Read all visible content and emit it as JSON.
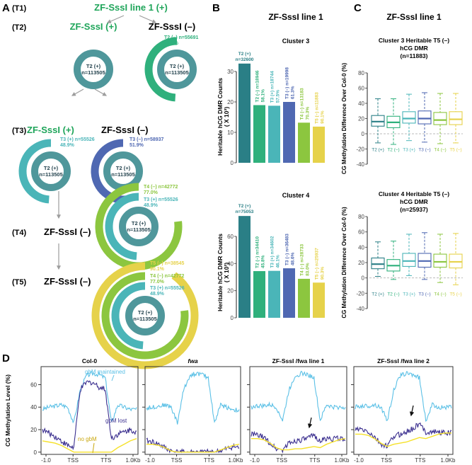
{
  "panels": {
    "A": {
      "letter": "A",
      "generation_labels": [
        "(T1)",
        "(T2)",
        "(T3)",
        "(T4)",
        "(T5)"
      ],
      "t1_title": "ZF-SssI line 1  (+)",
      "t2_plus": "ZF-SssI (+)",
      "t2_minus": "ZF-SssI (–)",
      "t3_plus": "ZF-SssI (+)",
      "t3_minus": "ZF-SssI (–)",
      "t4_minus": "ZF-SssI (–)",
      "t5_minus": "ZF-SssI (–)",
      "center_label_1": "T2 (+)",
      "center_label_2": "n=113505",
      "rings": {
        "t2_minus": {
          "label": "T2 (–) n=55691",
          "pct": "49.1%",
          "fraction": 0.491
        },
        "t3_plus": {
          "label": "T3 (+) n=55526",
          "pct": "48.9%",
          "fraction": 0.489
        },
        "t3_minus": {
          "label": "T3 (–) n=58937",
          "pct": "51.9%",
          "fraction": 0.519
        },
        "t4_minus": {
          "label": "T4 (–) n=42772",
          "pct": "77.0%",
          "fraction": 0.77
        },
        "t5_minus": {
          "label": "T5 (–) n=38545",
          "pct": "90.1%",
          "fraction": 0.901
        }
      }
    },
    "B": {
      "letter": "B",
      "title": "ZF-SssI line 1"
    },
    "C": {
      "letter": "C",
      "title": "ZF-SssI line 1"
    },
    "D": {
      "letter": "D"
    }
  },
  "colors": {
    "t2_plus": "#2a7f86",
    "t2_minus": "#2fb07c",
    "t3_plus": "#4ab5b8",
    "t3_minus": "#4f68b2",
    "t4_minus": "#8cc63f",
    "t5_minus": "#e6d24a",
    "ring_center": "#4f979b",
    "green_title": "#1fa55a",
    "gbm_maintained": "#5bc0e6",
    "gbm_lost": "#3b2f8f",
    "no_gbm": "#f5e12a"
  },
  "chart_data": [
    {
      "type": "bar",
      "title": "Cluster 3",
      "ylabel": "Heritable hCG DMR Counts ( X 10³)",
      "ylim": [
        0,
        30
      ],
      "yticks": [
        0,
        10,
        20,
        30
      ],
      "categories": [
        "T2 (+)",
        "T2 (–)",
        "T3 (+)",
        "T3 (–)",
        "T4 (–)",
        "T5 (–)"
      ],
      "values": [
        32.6,
        18.946,
        18.744,
        19.998,
        13.183,
        11.883
      ],
      "bar_labels": [
        [
          "T2 (+)",
          "n=32600"
        ],
        [
          "T2 (–) n=18946",
          "58.1%"
        ],
        [
          "T3 (+) n=18744",
          "57.5%"
        ],
        [
          "T3 (–) n=19998",
          "61.3%"
        ],
        [
          "T4 (–) n=13183",
          "70.3%"
        ],
        [
          "T5 (–) n=11883",
          "90.1%"
        ]
      ]
    },
    {
      "type": "bar",
      "title": "Cluster 4",
      "ylabel": "Heritable hCG DMR Counts ( X 10³)",
      "ylim": [
        0,
        60
      ],
      "yticks": [
        0,
        20,
        40,
        60
      ],
      "categories": [
        "T2 (+)",
        "T2 (–)",
        "T3 (+)",
        "T3 (–)",
        "T4 (–)",
        "T5 (–)"
      ],
      "values": [
        75.053,
        34.41,
        34.602,
        36.483,
        28.733,
        25.937
      ],
      "bar_labels": [
        [
          "T2 (+)",
          "n=75053"
        ],
        [
          "T2 (–) n=34410",
          "45.8%"
        ],
        [
          "T3 (+) n=34602",
          "46.1%"
        ],
        [
          "T3 (–) n=36483",
          "48.6%"
        ],
        [
          "T4 (–) n=28733",
          "83.0%"
        ],
        [
          "T5 (–) n=25937",
          "90.3%"
        ]
      ]
    },
    {
      "type": "box",
      "title": [
        "Cluster 3 Heritable T5 (–)",
        "hCG DMR",
        "(n=11883)"
      ],
      "ylabel": "CG Methylation Difference Over Col-0 (%)",
      "ylim": [
        -40,
        80
      ],
      "yticks": [
        -40,
        -20,
        0,
        20,
        40,
        60,
        80
      ],
      "categories": [
        "T2 (+)",
        "T2 (–)",
        "T3 (+)",
        "T3 (–)",
        "T4 (–)",
        "T5 (–)"
      ],
      "boxes": [
        {
          "whisker_low": -12,
          "q1": 10,
          "median": 16,
          "q3": 24,
          "whisker_high": 46
        },
        {
          "whisker_low": -14,
          "q1": 8,
          "median": 15,
          "q3": 23,
          "whisker_high": 46
        },
        {
          "whisker_low": -9,
          "q1": 14,
          "median": 20,
          "q3": 29,
          "whisker_high": 52
        },
        {
          "whisker_low": -11,
          "q1": 13,
          "median": 20,
          "q3": 30,
          "whisker_high": 54
        },
        {
          "whisker_low": -13,
          "q1": 12,
          "median": 18,
          "q3": 28,
          "whisker_high": 53
        },
        {
          "whisker_low": -12,
          "q1": 12,
          "median": 19,
          "q3": 29,
          "whisker_high": 53
        }
      ]
    },
    {
      "type": "box",
      "title": [
        "Cluster 4 Heritable T5 (–)",
        "hCG DMR",
        "(n=25937)"
      ],
      "ylabel": "CG Methylation Difference Over Col-0 (%)",
      "ylim": [
        -40,
        80
      ],
      "yticks": [
        -40,
        -20,
        0,
        20,
        40,
        60,
        80
      ],
      "categories": [
        "T2 (+)",
        "T2 (–)",
        "T3 (+)",
        "T3 (–)",
        "T4 (–)",
        "T5 (–)"
      ],
      "boxes": [
        {
          "whisker_low": 2,
          "q1": 12,
          "median": 18,
          "q3": 26,
          "whisker_high": 47
        },
        {
          "whisker_low": -2,
          "q1": 9,
          "median": 16,
          "q3": 24,
          "whisker_high": 48
        },
        {
          "whisker_low": 3,
          "q1": 15,
          "median": 22,
          "q3": 32,
          "whisker_high": 57
        },
        {
          "whisker_low": -2,
          "q1": 14,
          "median": 22,
          "q3": 32,
          "whisker_high": 59
        },
        {
          "whisker_low": -6,
          "q1": 14,
          "median": 21,
          "q3": 31,
          "whisker_high": 57
        },
        {
          "whisker_low": -9,
          "q1": 13,
          "median": 21,
          "q3": 31,
          "whisker_high": 58
        }
      ]
    },
    {
      "type": "line",
      "ylabel": "CG Methylation Level (%)",
      "ylim": [
        -2,
        76
      ],
      "yticks": [
        0,
        20,
        40,
        60
      ],
      "xticks": [
        "-1.0",
        "TSS",
        "TTS",
        "1.0Kb"
      ],
      "panels": [
        {
          "title": "Col-0",
          "annotations": [
            "gbM maintained",
            "gbM lost",
            "no gbM"
          ],
          "series": [
            {
              "name": "gbM maintained",
              "values": [
                38,
                40,
                41,
                42,
                40,
                26,
                55,
                68,
                70,
                69,
                66,
                26,
                42,
                40,
                38,
                38
              ]
            },
            {
              "name": "gbM lost",
              "values": [
                20,
                17,
                14,
                10,
                6,
                4,
                55,
                62,
                62,
                58,
                56,
                12,
                16,
                18,
                20,
                18
              ]
            },
            {
              "name": "no gbM",
              "values": [
                10,
                9,
                8,
                6,
                3,
                0,
                0,
                0,
                0,
                0,
                0,
                0,
                4,
                7,
                10,
                12
              ]
            }
          ]
        },
        {
          "title": "fwa",
          "annotations": [],
          "series": [
            {
              "name": "gbM maintained",
              "values": [
                39,
                40,
                41,
                42,
                40,
                26,
                55,
                68,
                70,
                69,
                66,
                26,
                42,
                40,
                38,
                37
              ]
            },
            {
              "name": "gbM lost",
              "values": [
                10,
                9,
                7,
                4,
                1,
                0,
                0,
                0,
                0,
                0,
                0,
                0,
                1,
                3,
                5,
                4
              ]
            },
            {
              "name": "no gbM",
              "values": [
                7,
                7,
                6,
                4,
                1,
                0,
                0,
                0,
                0,
                0,
                0,
                0,
                2,
                4,
                6,
                7
              ]
            }
          ]
        },
        {
          "title": "ZF-SssI /fwa line 1",
          "arrow": true,
          "annotations": [],
          "series": [
            {
              "name": "gbM maintained",
              "values": [
                40,
                41,
                41,
                42,
                40,
                28,
                55,
                68,
                70,
                69,
                66,
                28,
                42,
                40,
                40,
                40
              ]
            },
            {
              "name": "gbM lost",
              "values": [
                16,
                15,
                13,
                8,
                3,
                2,
                8,
                10,
                11,
                12,
                15,
                10,
                12,
                12,
                12,
                12
              ]
            },
            {
              "name": "no gbM",
              "values": [
                12,
                12,
                11,
                8,
                4,
                2,
                2,
                3,
                3,
                4,
                5,
                4,
                7,
                9,
                11,
                12
              ]
            }
          ]
        },
        {
          "title": "ZF-SssI /fwa line 2",
          "arrow": true,
          "annotations": [],
          "series": [
            {
              "name": "gbM maintained",
              "values": [
                40,
                41,
                41,
                42,
                40,
                28,
                55,
                68,
                70,
                69,
                66,
                28,
                42,
                40,
                40,
                40
              ]
            },
            {
              "name": "gbM lost",
              "values": [
                20,
                20,
                18,
                13,
                7,
                5,
                14,
                16,
                18,
                21,
                25,
                18,
                18,
                18,
                17,
                17
              ]
            },
            {
              "name": "no gbM",
              "values": [
                16,
                16,
                15,
                12,
                8,
                5,
                7,
                8,
                9,
                11,
                13,
                12,
                14,
                16,
                17,
                17
              ]
            }
          ]
        }
      ]
    }
  ]
}
